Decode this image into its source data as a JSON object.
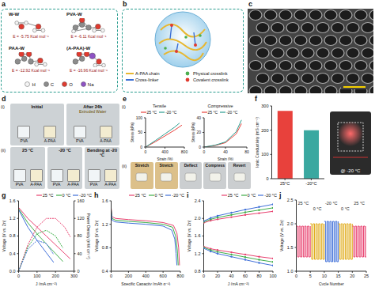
{
  "panels": {
    "a": {
      "letter": "a",
      "complexes": [
        {
          "name": "W-W",
          "energy": "E = -5.75 Kcal mol⁻¹"
        },
        {
          "name": "PVA-W",
          "energy": "E = -6.11 Kcal mol⁻¹"
        },
        {
          "name": "PAA-W",
          "energy": "E = -12.92 Kcal mol⁻¹"
        },
        {
          "name": "(A-PAA)-W",
          "energy": "E = -16.96 Kcal mol⁻¹"
        }
      ],
      "atoms": [
        {
          "name": "H",
          "color": "#f4f4f4"
        },
        {
          "name": "C",
          "color": "#8c8c8c"
        },
        {
          "name": "O",
          "color": "#e03a2f"
        },
        {
          "name": "Na",
          "color": "#8e52c4"
        }
      ]
    },
    "b": {
      "letter": "b",
      "legend": [
        {
          "name": "A-PAA chain",
          "color": "#e8b730"
        },
        {
          "name": "Physical crosslink",
          "color": "#4cae4f"
        },
        {
          "name": "Cross-linker",
          "color": "#3b6fd4"
        },
        {
          "name": "Covalent crosslink",
          "color": "#e03a2f"
        }
      ]
    },
    "c": {
      "letter": "c"
    },
    "d": {
      "letter": "d",
      "rows": [
        {
          "label": "(i)",
          "photos": [
            {
              "title": "Initial",
              "samples": [
                "PVA",
                "A-PAA"
              ]
            },
            {
              "title": "After 24h",
              "samples": [
                "PVA",
                "A-PAA"
              ],
              "note": "Extruded Water"
            }
          ]
        },
        {
          "label": "(ii)",
          "photos": [
            {
              "title": "25 °C",
              "samples": [
                "PVA",
                "A-PAA"
              ]
            },
            {
              "title": "-20 °C",
              "samples": [
                "PVA",
                "A-PAA"
              ]
            },
            {
              "title": "Bending at -20 °C",
              "samples": [
                "PVA",
                "A-PAA"
              ]
            }
          ]
        }
      ]
    },
    "e": {
      "letter": "e",
      "parts": [
        "(i)",
        "(ii)"
      ],
      "photos": [
        "Stretch",
        "Stretch",
        "Deflect",
        "Compress",
        "Revert"
      ]
    },
    "f": {
      "letter": "f",
      "inset": "@ -20 °C"
    },
    "g": {
      "letter": "g"
    },
    "h": {
      "letter": "h"
    },
    "i": {
      "letter": "i"
    },
    "j": {
      "letter": "j"
    }
  },
  "chart_data": [
    {
      "type": "line",
      "title": "Tensile",
      "x_label": "Strain (%)",
      "y_label": "Stress (kPa)",
      "xlim": [
        0,
        800
      ],
      "xticks": [
        0,
        400,
        800
      ],
      "ylim": [
        0,
        100
      ],
      "yticks": [
        0,
        50,
        100
      ],
      "legend": "top",
      "series": [
        {
          "name": "25 °C",
          "color": "#e8413c",
          "x": [
            0,
            200,
            400,
            600,
            750
          ],
          "values": [
            0,
            18,
            38,
            58,
            75
          ]
        },
        {
          "name": "-20 °C",
          "color": "#2a9d8f",
          "x": [
            0,
            200,
            400,
            600,
            700
          ],
          "values": [
            0,
            22,
            45,
            68,
            82
          ]
        }
      ]
    },
    {
      "type": "line",
      "title": "Compressive",
      "x_label": "Strain (%)",
      "y_label": "Stress (kPa)",
      "xlim": [
        0,
        80
      ],
      "xticks": [
        0,
        40,
        80
      ],
      "ylim": [
        0,
        40
      ],
      "yticks": [
        0,
        20,
        40
      ],
      "legend": "top",
      "series": [
        {
          "name": "25 °C",
          "color": "#e8413c",
          "x": [
            0,
            20,
            40,
            60,
            70
          ],
          "values": [
            0,
            2,
            6,
            18,
            32
          ]
        },
        {
          "name": "-20 °C",
          "color": "#2a9d8f",
          "x": [
            0,
            20,
            40,
            60,
            70
          ],
          "values": [
            0,
            2.5,
            7,
            21,
            37
          ]
        }
      ]
    },
    {
      "type": "bar",
      "y_label": "Ionic Conductivity (mS cm⁻¹)",
      "categories": [
        "25°C",
        "-20°C"
      ],
      "values": [
        280,
        200
      ],
      "colors": [
        "#e8413c",
        "#3aa8a0"
      ],
      "ylim": [
        0,
        300
      ],
      "yticks": [
        0,
        100,
        200,
        300
      ]
    },
    {
      "type": "line",
      "x_label": "J (mA cm⁻²)",
      "y_label": "Voltage (V vs. Zn)",
      "y2_label": "Power Density (mW cm⁻²)",
      "xlim": [
        0,
        300
      ],
      "xticks": [
        0,
        100,
        200,
        300
      ],
      "ylim": [
        0,
        1.6
      ],
      "yticks": [
        {
          "value": 0,
          "label": "0.0"
        },
        0.4,
        0.8,
        1.2,
        1.6
      ],
      "y2lim": [
        0,
        160
      ],
      "y2ticks": [
        0,
        40,
        80,
        120,
        160
      ],
      "legend": "top",
      "series": [
        {
          "name": "25 °C",
          "color": "#e8416f",
          "line_style": "solid",
          "x": [
            0,
            50,
            100,
            150,
            200,
            250,
            280
          ],
          "values": [
            1.45,
            1.2,
            1.0,
            0.8,
            0.6,
            0.4,
            0.28
          ]
        },
        {
          "name": "0 °C",
          "color": "#3fae49",
          "line_style": "solid",
          "x": [
            0,
            50,
            100,
            150,
            200,
            240
          ],
          "values": [
            1.42,
            1.1,
            0.85,
            0.62,
            0.4,
            0.22
          ]
        },
        {
          "name": "-20 °C",
          "color": "#3f6fd8",
          "line_style": "solid",
          "x": [
            0,
            50,
            100,
            150,
            190
          ],
          "values": [
            1.4,
            1.0,
            0.7,
            0.42,
            0.2
          ]
        },
        {
          "name": "25 °C",
          "color": "#e8416f",
          "line_style": "dashed",
          "axis": "y2",
          "x": [
            0,
            50,
            100,
            150,
            200,
            250,
            280
          ],
          "values": [
            0,
            60,
            100,
            120,
            120,
            100,
            78
          ]
        },
        {
          "name": "0 °C",
          "color": "#3fae49",
          "line_style": "dashed",
          "axis": "y2",
          "x": [
            0,
            50,
            100,
            150,
            200,
            240
          ],
          "values": [
            0,
            55,
            85,
            93,
            80,
            53
          ]
        },
        {
          "name": "-20 °C",
          "color": "#3f6fd8",
          "line_style": "dashed",
          "axis": "y2",
          "x": [
            0,
            50,
            100,
            150,
            190
          ],
          "values": [
            0,
            50,
            70,
            63,
            38
          ]
        }
      ]
    },
    {
      "type": "line",
      "x_label": "Specific Capacity (mAh g⁻¹)",
      "y_label": "Voltage (V vs. Zn)",
      "xlim": [
        0,
        800
      ],
      "xticks": [
        0,
        200,
        400,
        600,
        800
      ],
      "ylim": [
        0.4,
        1.6
      ],
      "yticks": [
        0.4,
        0.8,
        1.2,
        1.6
      ],
      "legend": "top",
      "series": [
        {
          "name": "25 °C",
          "color": "#e8416f",
          "x": [
            0,
            10,
            50,
            200,
            400,
            600,
            720,
            760,
            780,
            790
          ],
          "values": [
            1.48,
            1.33,
            1.3,
            1.28,
            1.26,
            1.23,
            1.18,
            1.05,
            0.8,
            0.5
          ]
        },
        {
          "name": "0 °C",
          "color": "#3fae49",
          "x": [
            0,
            10,
            50,
            200,
            400,
            600,
            710,
            745,
            765,
            775
          ],
          "values": [
            1.46,
            1.3,
            1.27,
            1.25,
            1.23,
            1.2,
            1.15,
            1.0,
            0.75,
            0.5
          ]
        },
        {
          "name": "-20 °C",
          "color": "#3f6fd8",
          "x": [
            0,
            10,
            50,
            200,
            400,
            600,
            700,
            735,
            750,
            760
          ],
          "values": [
            1.44,
            1.27,
            1.24,
            1.22,
            1.2,
            1.17,
            1.1,
            0.95,
            0.7,
            0.5
          ]
        }
      ]
    },
    {
      "type": "line",
      "x_label": "J (mA cm⁻²)",
      "y_label": "Voltage (V vs. Zn)",
      "xlim": [
        0,
        100
      ],
      "xticks": [
        0,
        20,
        40,
        60,
        80,
        100
      ],
      "ylim": [
        0.8,
        2.4
      ],
      "yticks": [
        0.8,
        1.2,
        1.6,
        {
          "value": 2,
          "label": "2.0"
        },
        2.4
      ],
      "legend": "top",
      "series": [
        {
          "name": "25 °C",
          "color": "#e8416f",
          "marker": "circle",
          "x": [
            0,
            10,
            20,
            40,
            60,
            80,
            100
          ],
          "values": [
            1.9,
            1.95,
            1.98,
            2.03,
            2.08,
            2.12,
            2.16
          ]
        },
        {
          "name": "25 °C",
          "color": "#e8416f",
          "marker": "circle",
          "x": [
            0,
            10,
            20,
            40,
            60,
            80,
            100
          ],
          "values": [
            1.36,
            1.31,
            1.28,
            1.23,
            1.18,
            1.13,
            1.09
          ]
        },
        {
          "name": "0 °C",
          "color": "#3fae49",
          "marker": "circle",
          "x": [
            0,
            10,
            20,
            40,
            60,
            80,
            100
          ],
          "values": [
            1.92,
            1.98,
            2.02,
            2.08,
            2.14,
            2.19,
            2.24
          ]
        },
        {
          "name": "0 °C",
          "color": "#3fae49",
          "marker": "circle",
          "x": [
            0,
            10,
            20,
            40,
            60,
            80,
            100
          ],
          "values": [
            1.34,
            1.28,
            1.24,
            1.18,
            1.12,
            1.06,
            1.01
          ]
        },
        {
          "name": "-20 °C",
          "color": "#3f6fd8",
          "marker": "circle",
          "x": [
            0,
            10,
            20,
            40,
            60,
            80,
            100
          ],
          "values": [
            1.94,
            2.01,
            2.06,
            2.13,
            2.2,
            2.26,
            2.32
          ]
        },
        {
          "name": "-20 °C",
          "color": "#3f6fd8",
          "marker": "circle",
          "x": [
            0,
            10,
            20,
            40,
            60,
            80,
            100
          ],
          "values": [
            1.32,
            1.25,
            1.2,
            1.13,
            1.06,
            0.99,
            0.93
          ]
        }
      ]
    },
    {
      "type": "line",
      "x_label": "Cycle Number",
      "y_label": "Voltage (V vs. Zn)",
      "xlim": [
        0,
        25
      ],
      "xticks": [
        0,
        5,
        10,
        15,
        20,
        25
      ],
      "ylim": [
        1,
        2.5
      ],
      "yticks": [
        {
          "value": 1,
          "label": "1.0"
        },
        1.5,
        {
          "value": 2,
          "label": "2.0"
        },
        2.5
      ],
      "series": [
        {
          "name": "25 °C",
          "color": "#e8416f",
          "line_style": "step",
          "x": [
            0,
            0.5,
            1,
            1.5,
            2,
            2.5,
            3,
            3.5,
            4,
            4.5,
            5
          ],
          "values": [
            1.95,
            1.3,
            1.95,
            1.3,
            1.95,
            1.3,
            1.95,
            1.3,
            1.95,
            1.3,
            1.95
          ]
        },
        {
          "name": "0 °C",
          "color": "#e0ac1c",
          "line_style": "step",
          "x": [
            5,
            5.5,
            6,
            6.5,
            7,
            7.5,
            8,
            8.5,
            9,
            9.5,
            10
          ],
          "values": [
            2.0,
            1.25,
            2.0,
            1.25,
            2.0,
            1.25,
            2.0,
            1.25,
            2.0,
            1.25,
            2.0
          ]
        },
        {
          "name": "-20 °C",
          "color": "#3f6fd8",
          "line_style": "step",
          "x": [
            10,
            10.5,
            11,
            11.5,
            12,
            12.5,
            13,
            13.5,
            14,
            14.5,
            15
          ],
          "values": [
            2.05,
            1.2,
            2.05,
            1.2,
            2.05,
            1.2,
            2.05,
            1.2,
            2.05,
            1.2,
            2.05
          ]
        },
        {
          "name": "0 °C",
          "color": "#e0ac1c",
          "line_style": "step",
          "x": [
            15,
            15.5,
            16,
            16.5,
            17,
            17.5,
            18,
            18.5,
            19,
            19.5,
            20
          ],
          "values": [
            2.0,
            1.25,
            2.0,
            1.25,
            2.0,
            1.25,
            2.0,
            1.25,
            2.0,
            1.25,
            2.0
          ]
        },
        {
          "name": "25 °C",
          "color": "#e8416f",
          "line_style": "step",
          "x": [
            20,
            20.5,
            21,
            21.5,
            22,
            22.5,
            23,
            23.5,
            24,
            24.5,
            25
          ],
          "values": [
            1.95,
            1.3,
            1.95,
            1.3,
            1.95,
            1.3,
            1.95,
            1.3,
            1.95,
            1.3,
            1.95
          ]
        }
      ]
    }
  ]
}
